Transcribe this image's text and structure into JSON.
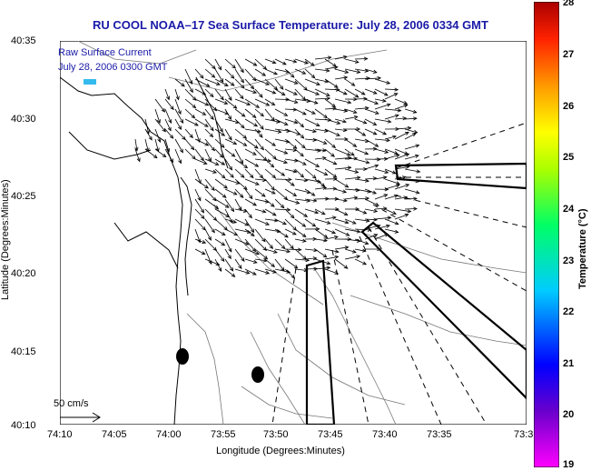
{
  "title": "RU COOL  NOAA–17  Sea Surface Temperature:  July 28, 2006 0334 GMT",
  "overlay": {
    "line1": "Raw Surface Current",
    "line2": "July 28, 2006 0300 GMT"
  },
  "scale_label": "50 cm/s",
  "axes": {
    "xlabel": "Longitude (Degrees:Minutes)",
    "ylabel": "Latitude (Degrees:Minutes)",
    "xticks": [
      "74:10",
      "74:05",
      "74:00",
      "73:55",
      "73:50",
      "73:45",
      "73:40",
      "73:35",
      "73:3"
    ],
    "yticks": [
      "40:35",
      "40:30",
      "40:25",
      "40:20",
      "40:15",
      "40:10"
    ]
  },
  "colorbar": {
    "label": "Temperature (°C)",
    "ticks": [
      "28",
      "27",
      "26",
      "25",
      "24",
      "23",
      "22",
      "21",
      "20",
      "19"
    ]
  },
  "colors": {
    "title": "#1a1aa8",
    "land": "#ffffff",
    "coast": "#000000",
    "contour": "#777777"
  }
}
